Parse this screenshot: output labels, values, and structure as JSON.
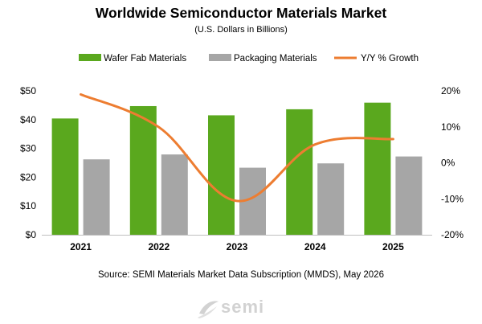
{
  "chart_data": {
    "type": "bar",
    "title": "Worldwide Semiconductor Materials Market",
    "subtitle": "(U.S. Dollars in Billions)",
    "categories": [
      "2021",
      "2022",
      "2023",
      "2024",
      "2025"
    ],
    "series": [
      {
        "name": "Wafer Fab Materials",
        "type": "bar",
        "axis": "left",
        "color": "#5aa81e",
        "values": [
          40.4,
          44.7,
          41.5,
          43.6,
          45.9
        ]
      },
      {
        "name": "Packaging  Materials",
        "type": "bar",
        "axis": "left",
        "color": "#a6a6a6",
        "values": [
          26.2,
          27.9,
          23.3,
          24.8,
          27.2
        ]
      },
      {
        "name": "Y/Y % Growth",
        "type": "line",
        "axis": "right",
        "color": "#ed7d31",
        "values": [
          19.0,
          9.9,
          -10.6,
          5.1,
          6.6
        ]
      }
    ],
    "left_axis": {
      "ylim": [
        0,
        50
      ],
      "ticks": [
        0,
        10,
        20,
        30,
        40,
        50
      ],
      "tick_labels": [
        "$0",
        "$10",
        "$20",
        "$30",
        "$40",
        "$50"
      ]
    },
    "right_axis": {
      "ylim": [
        -20,
        20
      ],
      "ticks": [
        -20,
        -10,
        0,
        10,
        20
      ],
      "tick_labels": [
        "-20%",
        "-10%",
        "0%",
        "10%",
        "20%"
      ]
    },
    "legend_position": "top",
    "grid": false,
    "source": "Source:  SEMI Materials Market Data Subscription (MMDS), May 2026",
    "logo_text": "semi"
  }
}
